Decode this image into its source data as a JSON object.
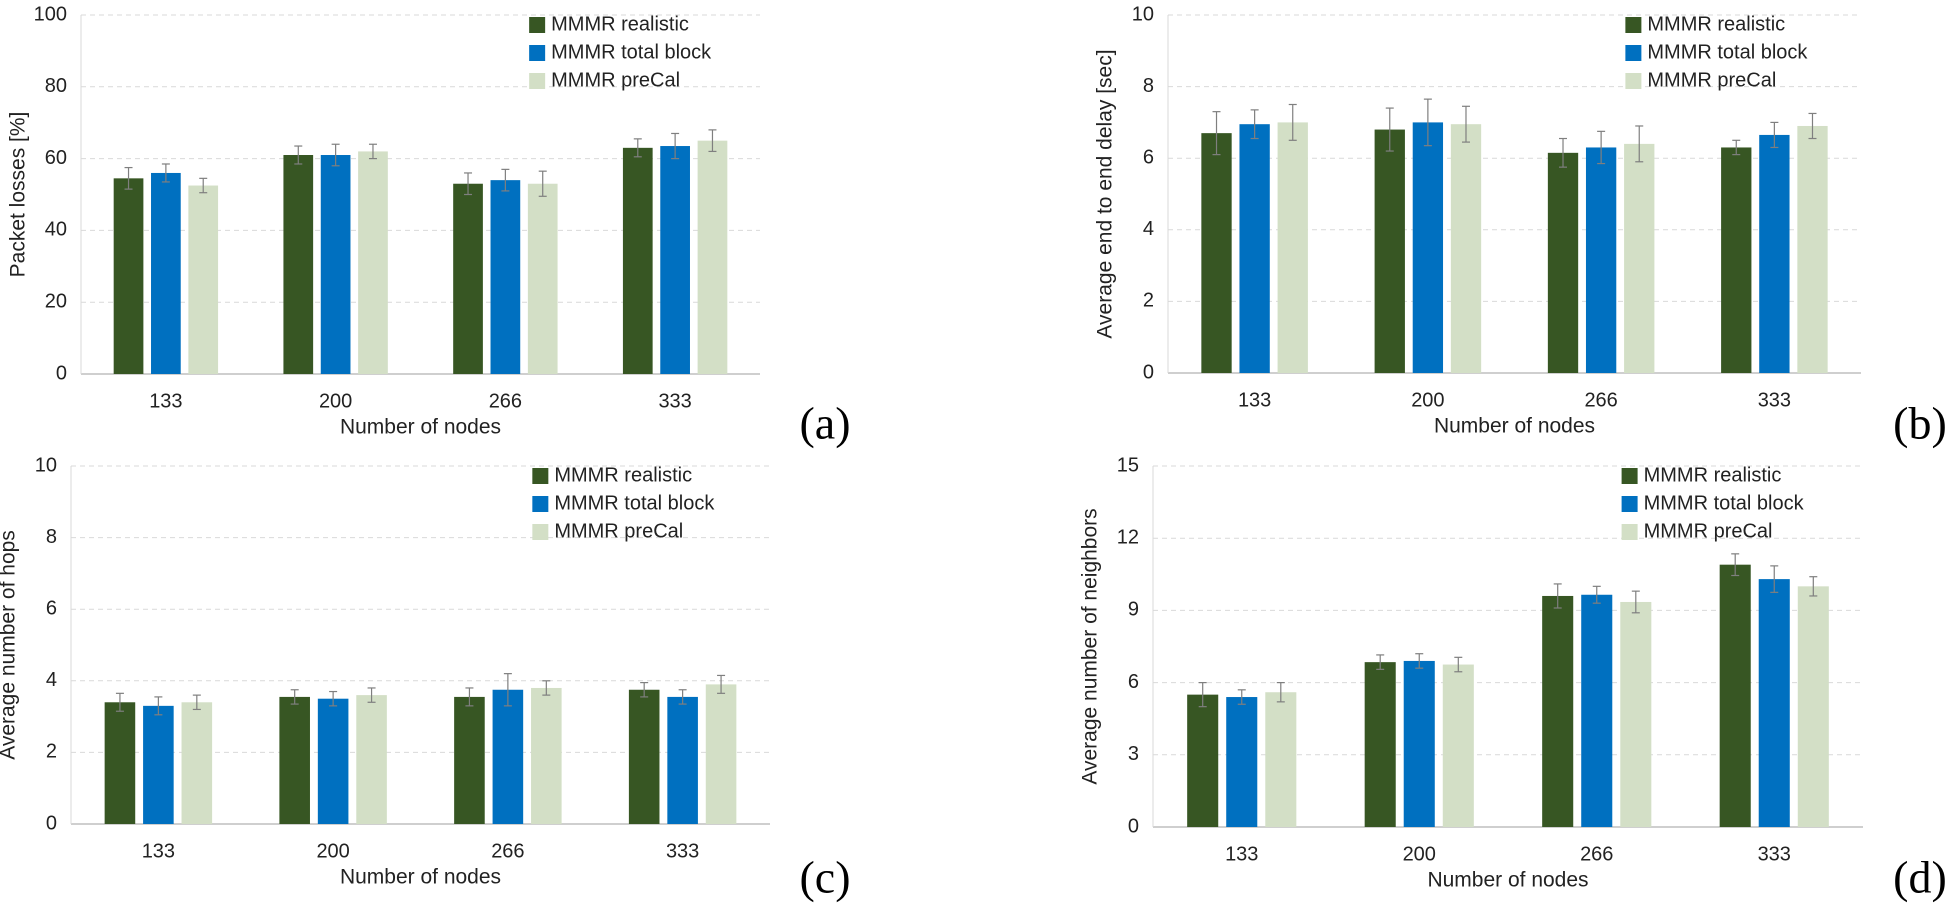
{
  "chart_data": [
    {
      "type": "bar",
      "panel_label": "(a)",
      "ylabel": "Packet losses [%]",
      "xlabel": "Number of nodes",
      "categories": [
        "133",
        "200",
        "266",
        "333"
      ],
      "ylim": [
        0,
        100
      ],
      "yticks": [
        0,
        20,
        40,
        60,
        80,
        100
      ],
      "grid": true,
      "legend": "upper right",
      "series": [
        {
          "name": "MMMR realistic",
          "color": "#375623",
          "values": [
            54.5,
            61,
            53,
            63
          ],
          "errors": [
            3,
            2.5,
            3,
            2.5
          ]
        },
        {
          "name": "MMMR total block",
          "color": "#0070c0",
          "values": [
            56,
            61,
            54,
            63.5
          ],
          "errors": [
            2.5,
            3,
            3,
            3.5
          ]
        },
        {
          "name": "MMMR preCal",
          "color": "#d3dfc6",
          "values": [
            52.5,
            62,
            53,
            65
          ],
          "errors": [
            2,
            2,
            3.5,
            3
          ]
        }
      ]
    },
    {
      "type": "bar",
      "panel_label": "(b)",
      "ylabel": "Average end to end delay [sec]",
      "xlabel": "Number of nodes",
      "categories": [
        "133",
        "200",
        "266",
        "333"
      ],
      "ylim": [
        0,
        10
      ],
      "yticks": [
        0,
        2,
        4,
        6,
        8,
        10
      ],
      "grid": true,
      "legend": "upper right",
      "series": [
        {
          "name": "MMMR realistic",
          "color": "#375623",
          "values": [
            6.7,
            6.8,
            6.15,
            6.3
          ],
          "errors": [
            0.6,
            0.6,
            0.4,
            0.2
          ]
        },
        {
          "name": "MMMR total block",
          "color": "#0070c0",
          "values": [
            6.95,
            7.0,
            6.3,
            6.65
          ],
          "errors": [
            0.4,
            0.65,
            0.45,
            0.35
          ]
        },
        {
          "name": "MMMR preCal",
          "color": "#d3dfc6",
          "values": [
            7.0,
            6.95,
            6.4,
            6.9
          ],
          "errors": [
            0.5,
            0.5,
            0.5,
            0.35
          ]
        }
      ]
    },
    {
      "type": "bar",
      "panel_label": "(c)",
      "ylabel": "Average number of hops",
      "xlabel": "Number of nodes",
      "categories": [
        "133",
        "200",
        "266",
        "333"
      ],
      "ylim": [
        0,
        10
      ],
      "yticks": [
        0,
        2,
        4,
        6,
        8,
        10
      ],
      "grid": true,
      "legend": "upper right",
      "series": [
        {
          "name": "MMMR realistic",
          "color": "#375623",
          "values": [
            3.4,
            3.55,
            3.55,
            3.75
          ],
          "errors": [
            0.25,
            0.2,
            0.25,
            0.2
          ]
        },
        {
          "name": "MMMR total block",
          "color": "#0070c0",
          "values": [
            3.3,
            3.5,
            3.75,
            3.55
          ],
          "errors": [
            0.25,
            0.2,
            0.45,
            0.2
          ]
        },
        {
          "name": "MMMR preCal",
          "color": "#d3dfc6",
          "values": [
            3.4,
            3.6,
            3.8,
            3.9
          ],
          "errors": [
            0.2,
            0.2,
            0.2,
            0.25
          ]
        }
      ]
    },
    {
      "type": "bar",
      "panel_label": "(d)",
      "ylabel": "Average number of neighbors",
      "xlabel": "Number of nodes",
      "categories": [
        "133",
        "200",
        "266",
        "333"
      ],
      "ylim": [
        0,
        15
      ],
      "yticks": [
        0,
        3,
        6,
        9,
        12,
        15
      ],
      "grid": true,
      "legend": "upper right",
      "series": [
        {
          "name": "MMMR realistic",
          "color": "#375623",
          "values": [
            5.5,
            6.85,
            9.6,
            10.9
          ],
          "errors": [
            0.5,
            0.3,
            0.5,
            0.45
          ]
        },
        {
          "name": "MMMR total block",
          "color": "#0070c0",
          "values": [
            5.4,
            6.9,
            9.65,
            10.3
          ],
          "errors": [
            0.3,
            0.3,
            0.35,
            0.55
          ]
        },
        {
          "name": "MMMR preCal",
          "color": "#d3dfc6",
          "values": [
            5.6,
            6.75,
            9.35,
            10.0
          ],
          "errors": [
            0.4,
            0.3,
            0.45,
            0.4
          ]
        }
      ]
    }
  ]
}
